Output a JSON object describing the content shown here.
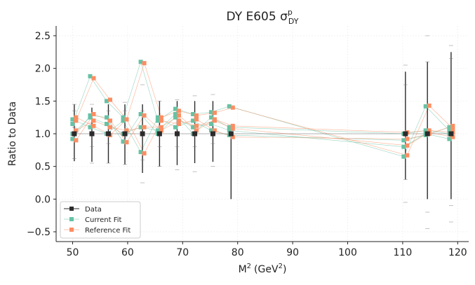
{
  "chart_data": {
    "type": "scatter",
    "title": "DY E605 σ",
    "title_sup": "p",
    "title_sub": "DY",
    "xlabel": "M",
    "xlabel_sup": "2",
    "xlabel_unit": "(GeV",
    "xlabel_unit_sup": "2",
    "xlabel_unit_close": ")",
    "ylabel": "Ratio to Data",
    "xlim": [
      47,
      122
    ],
    "ylim": [
      -0.65,
      2.65
    ],
    "xticks": [
      50,
      60,
      70,
      80,
      90,
      100,
      110,
      120
    ],
    "yticks": [
      -0.5,
      0.0,
      0.5,
      1.0,
      1.5,
      2.0,
      2.5
    ],
    "xtick_labels": [
      "50",
      "60",
      "70",
      "80",
      "90",
      "100",
      "110",
      "120"
    ],
    "ytick_labels": [
      "−0.5",
      "0.0",
      "0.5",
      "1.0",
      "1.5",
      "2.0",
      "2.5"
    ],
    "grid": true,
    "legend_position": "lower-left",
    "colors": {
      "data": "#2b2b2b",
      "current": "#66c2a5",
      "reference": "#fc8d62"
    },
    "x": [
      50.3,
      53.5,
      56.5,
      59.5,
      62.7,
      65.8,
      69.0,
      72.2,
      75.5,
      78.8,
      110.5,
      114.5,
      118.8
    ],
    "series": [
      {
        "name": "Data",
        "values": [
          1,
          1,
          1,
          1,
          1,
          1,
          1,
          1,
          1,
          1,
          1,
          1,
          1
        ],
        "err_low": [
          0.58,
          0.57,
          0.55,
          0.53,
          0.4,
          0.5,
          0.52,
          0.55,
          0.57,
          0.0,
          0.3,
          0.0,
          0.0
        ],
        "err_high": [
          1.45,
          1.4,
          1.45,
          1.45,
          1.45,
          1.5,
          1.5,
          1.5,
          1.5,
          1.0,
          1.95,
          2.1,
          2.25
        ],
        "spread": [
          [
            0.62,
            0.9,
            1.0,
            1.1,
            1.2,
            1.35,
            1.45
          ],
          [
            0.55,
            0.8,
            1.0,
            1.15,
            1.3,
            1.45
          ],
          [
            0.55,
            0.85,
            1.0,
            1.15,
            1.35,
            1.5
          ],
          [
            0.53,
            0.85,
            1.0,
            1.2,
            1.35,
            1.48
          ],
          [
            0.25,
            0.6,
            1.0,
            1.35,
            1.75
          ],
          [
            0.5,
            0.8,
            1.0,
            1.25,
            1.5
          ],
          [
            0.45,
            0.8,
            1.0,
            1.3,
            1.52
          ],
          [
            0.42,
            0.8,
            1.0,
            1.3,
            1.58
          ],
          [
            0.5,
            0.85,
            1.0,
            1.3,
            1.6
          ],
          [
            1.0,
            1.05
          ],
          [
            -0.05,
            0.3,
            1.0,
            1.75,
            2.05
          ],
          [
            -0.45,
            -0.2,
            1.0,
            2.1,
            2.5
          ],
          [
            -0.35,
            -0.1,
            1.0,
            2.15,
            2.35
          ]
        ]
      },
      {
        "name": "Current Fit",
        "values_sets": [
          [
            1.15,
            1.88,
            1.5,
            1.25,
            2.1,
            1.2,
            1.38,
            1.3,
            1.33,
            1.42,
            0.65,
            1.42,
            1.05
          ],
          [
            0.92,
            1.28,
            1.25,
            0.88,
            1.3,
            1.0,
            1.25,
            1.1,
            1.15,
            1.05,
            0.8,
            1.0,
            0.92
          ],
          [
            1.22,
            1.1,
            1.0,
            1.2,
            0.72,
            1.25,
            1.1,
            1.2,
            1.05,
            0.98,
            0.9,
            0.98,
            1.1
          ],
          [
            1.0,
            1.25,
            1.15,
            1.0,
            1.1,
            1.05,
            1.3,
            1.0,
            1.25,
            1.1,
            1.0,
            1.05,
            1.0
          ]
        ]
      },
      {
        "name": "Reference Fit",
        "values_sets": [
          [
            1.2,
            1.85,
            1.52,
            1.22,
            2.08,
            1.25,
            1.35,
            1.28,
            1.32,
            1.4,
            0.67,
            1.43,
            1.08
          ],
          [
            0.9,
            1.3,
            1.2,
            0.87,
            1.28,
            1.05,
            1.2,
            1.12,
            1.2,
            1.08,
            0.82,
            1.02,
            0.95
          ],
          [
            1.25,
            1.12,
            0.98,
            1.22,
            0.7,
            1.2,
            1.15,
            1.22,
            1.05,
            0.95,
            0.92,
            1.0,
            1.12
          ],
          [
            1.05,
            1.2,
            1.1,
            1.05,
            1.1,
            1.1,
            1.28,
            1.05,
            1.22,
            1.12,
            1.02,
            1.05,
            1.02
          ]
        ]
      }
    ]
  }
}
